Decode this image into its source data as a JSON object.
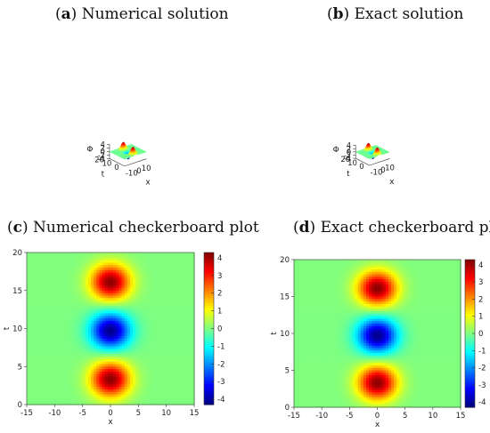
{
  "panels": [
    {
      "letter": "a",
      "title": "Numerical solution",
      "chart_data": {
        "type": "surface",
        "x": {
          "label": "x",
          "ticks": [
            "-10",
            "0",
            "10"
          ]
        },
        "t": {
          "label": "t",
          "ticks": [
            "0",
            "10",
            "20"
          ]
        },
        "z": {
          "label": "Φ",
          "ticks": [
            "-4",
            "-2",
            "0",
            "2",
            "4"
          ],
          "range": [
            -4,
            4.3
          ]
        },
        "colormap": "jet"
      }
    },
    {
      "letter": "b",
      "title": "Exact solution",
      "chart_data": {
        "type": "surface",
        "x": {
          "label": "x",
          "ticks": [
            "-10",
            "0",
            "10"
          ]
        },
        "t": {
          "label": "t",
          "ticks": [
            "0",
            "10",
            "20"
          ]
        },
        "z": {
          "label": "Φ",
          "ticks": [
            "-4",
            "-2",
            "0",
            "2",
            "4"
          ],
          "range": [
            -4,
            4.3
          ]
        },
        "colormap": "jet"
      }
    },
    {
      "letter": "c",
      "title": "Numerical checkerboard plot",
      "chart_data": {
        "type": "heatmap",
        "xlabel": "x",
        "ylabel": "t",
        "xlim": [
          -15,
          15
        ],
        "ylim": [
          0,
          20
        ],
        "xticks": [
          "-15",
          "-10",
          "-5",
          "0",
          "5",
          "10",
          "15"
        ],
        "yticks": [
          "0",
          "5",
          "10",
          "15",
          "20"
        ],
        "colorbar_ticks": [
          "4",
          "3",
          "2",
          "1",
          "0",
          "-1",
          "-2",
          "-3",
          "-4"
        ],
        "colorbar_range": [
          -4.3,
          4.3
        ],
        "colormap": "jet"
      }
    },
    {
      "letter": "d",
      "title": "Exact checkerboard plot",
      "chart_data": {
        "type": "heatmap",
        "xlabel": "x",
        "ylabel": "t",
        "xlim": [
          -15,
          15
        ],
        "ylim": [
          0,
          20
        ],
        "xticks": [
          "-15",
          "-10",
          "-5",
          "0",
          "5",
          "10",
          "15"
        ],
        "yticks": [
          "0",
          "5",
          "10",
          "15",
          "20"
        ],
        "colorbar_ticks": [
          "4",
          "3",
          "2",
          "1",
          "0",
          "-1",
          "-2",
          "-3",
          "-4"
        ],
        "colorbar_range": [
          -4.3,
          4.3
        ],
        "colormap": "jet"
      }
    }
  ]
}
